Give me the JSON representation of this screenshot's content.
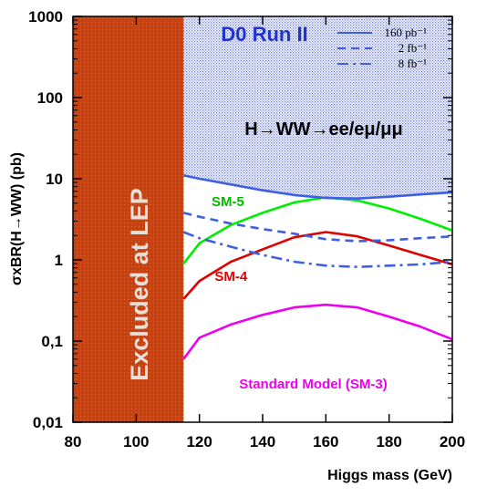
{
  "chart_data": {
    "type": "line",
    "title": "D0 Run II",
    "subtitle": "H→WW→ee/eμ/μμ",
    "xlabel": "Higgs mass (GeV)",
    "ylabel": "σxBR(H→WW) (pb)",
    "xlim": [
      80,
      200
    ],
    "ylim": [
      0.01,
      1000
    ],
    "y_scale": "log",
    "grid": false,
    "x_ticks": [
      "80",
      "100",
      "120",
      "140",
      "160",
      "180",
      "200"
    ],
    "y_ticks": [
      {
        "value": 1000,
        "label": "1000"
      },
      {
        "value": 100,
        "label": "100"
      },
      {
        "value": 10,
        "label": "10"
      },
      {
        "value": 1,
        "label": "1"
      },
      {
        "value": 0.1,
        "label": "0,1"
      },
      {
        "value": 0.01,
        "label": "0,01"
      }
    ],
    "excluded_region": {
      "label": "Excluded at LEP",
      "x_from": 80,
      "x_to": 115,
      "color": "#c0360f"
    },
    "legend": {
      "placement": "top-right",
      "entries": [
        {
          "label": "160 pb⁻¹",
          "style": "solid",
          "color": "#3f5fe0"
        },
        {
          "label": "2 fb⁻¹",
          "style": "dashed",
          "color": "#3f5fe0"
        },
        {
          "label": "8 fb⁻¹",
          "style": "dashdot",
          "color": "#3f5fe0"
        }
      ]
    },
    "series": [
      {
        "name": "Standard Model (SM-3)",
        "color": "#ee00ee",
        "style": "solid",
        "x": [
          115,
          120,
          130,
          140,
          150,
          160,
          170,
          180,
          190,
          200
        ],
        "y": [
          0.06,
          0.11,
          0.16,
          0.21,
          0.26,
          0.28,
          0.26,
          0.2,
          0.15,
          0.105
        ]
      },
      {
        "name": "SM-4",
        "color": "#e00000",
        "style": "solid",
        "x": [
          115,
          120,
          130,
          140,
          150,
          160,
          170,
          180,
          190,
          200
        ],
        "y": [
          0.33,
          0.55,
          0.95,
          1.35,
          1.9,
          2.2,
          1.95,
          1.5,
          1.15,
          0.88
        ]
      },
      {
        "name": "SM-5",
        "color": "#00ee00",
        "style": "solid",
        "x": [
          115,
          120,
          130,
          140,
          150,
          160,
          170,
          180,
          190,
          200
        ],
        "y": [
          0.9,
          1.6,
          2.7,
          3.8,
          5.1,
          5.9,
          5.4,
          4.3,
          3.2,
          2.3
        ]
      },
      {
        "name": "160 pb⁻¹",
        "color": "#3f5fe0",
        "style": "solid",
        "fill": true,
        "x": [
          115,
          120,
          130,
          140,
          150,
          160,
          170,
          180,
          190,
          200
        ],
        "y": [
          11,
          10,
          8.5,
          7.2,
          6.3,
          5.8,
          5.7,
          6.0,
          6.4,
          6.8
        ]
      },
      {
        "name": "2 fb⁻¹",
        "color": "#3f5fe0",
        "style": "dashed",
        "x": [
          115,
          120,
          130,
          140,
          150,
          160,
          170,
          180,
          190,
          200
        ],
        "y": [
          3.8,
          3.4,
          2.8,
          2.4,
          2.1,
          1.8,
          1.7,
          1.75,
          1.85,
          1.95
        ]
      },
      {
        "name": "8 fb⁻¹",
        "color": "#3f5fe0",
        "style": "dashdot",
        "x": [
          115,
          120,
          130,
          140,
          150,
          160,
          170,
          180,
          190,
          200
        ],
        "y": [
          2.2,
          1.85,
          1.45,
          1.15,
          0.95,
          0.85,
          0.82,
          0.85,
          0.88,
          0.95
        ]
      }
    ],
    "annotations": [
      {
        "text": "SM-5",
        "x": 129,
        "y": 4.6,
        "color": "#00bb00"
      },
      {
        "text": "SM-4",
        "x": 130,
        "y": 0.55,
        "color": "#e00000"
      },
      {
        "text": "Standard Model (SM-3)",
        "x": 156,
        "y": 0.026,
        "color": "#ee00ee"
      }
    ]
  }
}
